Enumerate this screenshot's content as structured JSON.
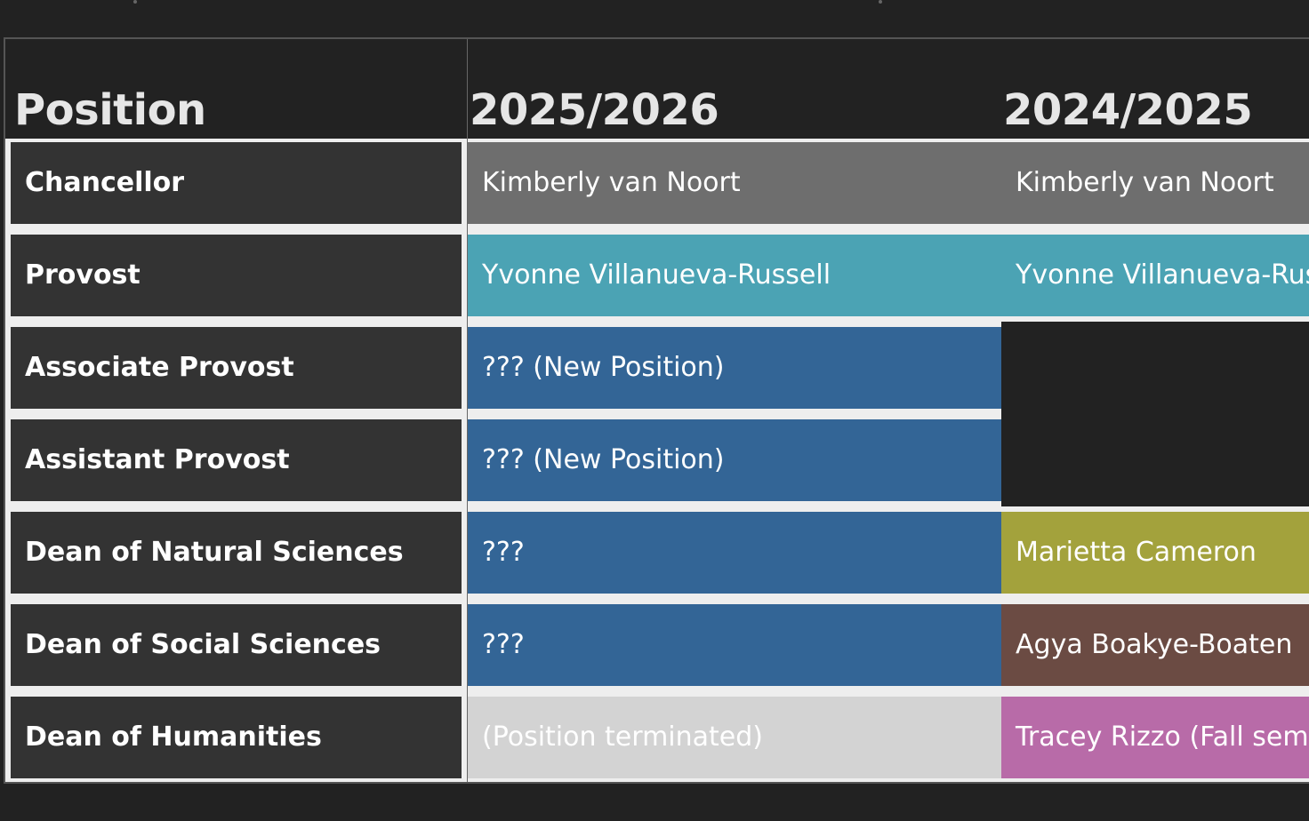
{
  "table": {
    "headers": {
      "position": "Position",
      "year_1": "2025/2026",
      "year_2": "2024/2025"
    },
    "rows": [
      {
        "position": "Chancellor",
        "year_1": "Kimberly van Noort",
        "year_2": "Kimberly van Noort"
      },
      {
        "position": "Provost",
        "year_1": "Yvonne Villanueva-Russell",
        "year_2": "Yvonne Villanueva-Russell"
      },
      {
        "position": "Associate Provost",
        "year_1": "??? (New Position)",
        "year_2": ""
      },
      {
        "position": "Assistant Provost",
        "year_1": "??? (New Position)",
        "year_2": ""
      },
      {
        "position": "Dean of Natural Sciences",
        "year_1": "???",
        "year_2": "Marietta Cameron"
      },
      {
        "position": "Dean of Social Sciences",
        "year_1": "???",
        "year_2": "Agya Boakye-Boaten"
      },
      {
        "position": "Dean of Humanities",
        "year_1": "(Position terminated)",
        "year_2": "Tracey Rizzo (Fall semester)"
      }
    ]
  },
  "colors": {
    "page_background": "#222222",
    "position_cell": "#333333",
    "grey": "#6e6e6e",
    "teal": "#4ba3b4",
    "blue": "#336596",
    "olive": "#a3a23c",
    "brown": "#6b4b43",
    "light_grey": "#d3d3d3",
    "pink": "#b86ba8"
  }
}
